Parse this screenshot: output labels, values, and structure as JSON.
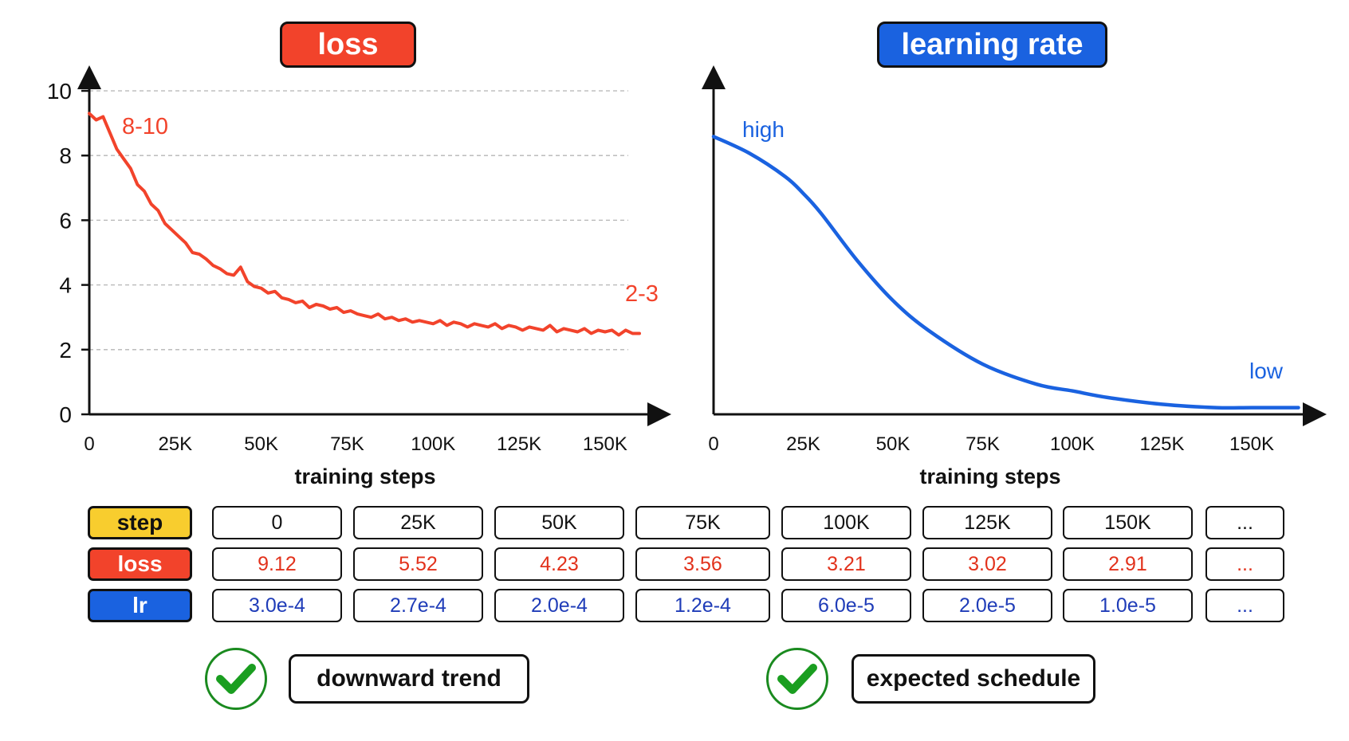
{
  "chart_data": [
    {
      "type": "line",
      "title": "loss",
      "xlabel": "training steps",
      "ylabel": "",
      "xlim": [
        0,
        160000
      ],
      "ylim": [
        0,
        10
      ],
      "x_ticks": [
        "0",
        "25K",
        "50K",
        "75K",
        "100K",
        "125K",
        "150K"
      ],
      "y_ticks": [
        "0",
        "2",
        "4",
        "6",
        "8",
        "10"
      ],
      "grid": "horizontal dashed",
      "color": "#f2432b",
      "annotations": [
        {
          "text": "8-10",
          "x": 8000,
          "y": 9.0
        },
        {
          "text": "2-3",
          "x": 150000,
          "y": 3.7
        }
      ],
      "series": [
        {
          "name": "",
          "x": [
            0,
            2000,
            4000,
            6000,
            8000,
            10000,
            12000,
            14000,
            16000,
            18000,
            20000,
            22000,
            24000,
            26000,
            28000,
            30000,
            32000,
            34000,
            36000,
            38000,
            40000,
            42000,
            44000,
            46000,
            48000,
            50000,
            52000,
            54000,
            56000,
            58000,
            60000,
            62000,
            64000,
            66000,
            68000,
            70000,
            72000,
            74000,
            76000,
            78000,
            80000,
            82000,
            84000,
            86000,
            88000,
            90000,
            92000,
            94000,
            96000,
            98000,
            100000,
            102000,
            104000,
            106000,
            108000,
            110000,
            112000,
            114000,
            116000,
            118000,
            120000,
            122000,
            124000,
            126000,
            128000,
            130000,
            132000,
            134000,
            136000,
            138000,
            140000,
            142000,
            144000,
            146000,
            148000,
            150000,
            152000,
            154000,
            156000,
            158000,
            160000
          ],
          "y": [
            9.3,
            9.1,
            9.2,
            8.7,
            8.2,
            7.9,
            7.6,
            7.1,
            6.9,
            6.5,
            6.3,
            5.9,
            5.7,
            5.5,
            5.3,
            5.0,
            4.95,
            4.8,
            4.6,
            4.5,
            4.35,
            4.3,
            4.55,
            4.1,
            3.95,
            3.9,
            3.75,
            3.8,
            3.6,
            3.55,
            3.45,
            3.5,
            3.3,
            3.4,
            3.35,
            3.25,
            3.3,
            3.15,
            3.2,
            3.1,
            3.05,
            3.0,
            3.1,
            2.95,
            3.0,
            2.9,
            2.95,
            2.85,
            2.9,
            2.85,
            2.8,
            2.9,
            2.75,
            2.85,
            2.8,
            2.7,
            2.8,
            2.75,
            2.7,
            2.8,
            2.65,
            2.75,
            2.7,
            2.6,
            2.7,
            2.65,
            2.6,
            2.75,
            2.55,
            2.65,
            2.6,
            2.55,
            2.65,
            2.5,
            2.6,
            2.55,
            2.6,
            2.45,
            2.6,
            2.5,
            2.5
          ]
        }
      ]
    },
    {
      "type": "line",
      "title": "learning rate",
      "xlabel": "training steps",
      "ylabel": "",
      "xlim": [
        0,
        170000
      ],
      "ylim": [
        0,
        1
      ],
      "x_ticks": [
        "0",
        "25K",
        "50K",
        "75K",
        "100K",
        "125K",
        "150K"
      ],
      "grid": "none",
      "color": "#1a62e0",
      "annotations": [
        {
          "text": "high",
          "x": 9000,
          "y": 0.82
        },
        {
          "text": "low",
          "x": 150000,
          "y": 0.12
        }
      ],
      "series": [
        {
          "name": "",
          "x": [
            0,
            10000,
            20000,
            25000,
            30000,
            40000,
            50000,
            60000,
            75000,
            90000,
            100000,
            110000,
            125000,
            140000,
            150000,
            163000
          ],
          "y": [
            0.83,
            0.78,
            0.71,
            0.66,
            0.6,
            0.46,
            0.34,
            0.25,
            0.15,
            0.09,
            0.07,
            0.05,
            0.03,
            0.02,
            0.02,
            0.02
          ]
        }
      ]
    }
  ],
  "table": {
    "headers": {
      "step": "step",
      "loss": "loss",
      "lr": "lr"
    },
    "steps": [
      "0",
      "25K",
      "50K",
      "75K",
      "100K",
      "125K",
      "150K",
      "..."
    ],
    "losses": [
      "9.12",
      "5.52",
      "4.23",
      "3.56",
      "3.21",
      "3.02",
      "2.91",
      "..."
    ],
    "lrs": [
      "3.0e-4",
      "2.7e-4",
      "2.0e-4",
      "1.2e-4",
      "6.0e-5",
      "2.0e-5",
      "1.0e-5",
      "..."
    ]
  },
  "status": {
    "loss_label": "downward trend",
    "lr_label": "expected schedule",
    "check_color": "#1a9e20"
  }
}
